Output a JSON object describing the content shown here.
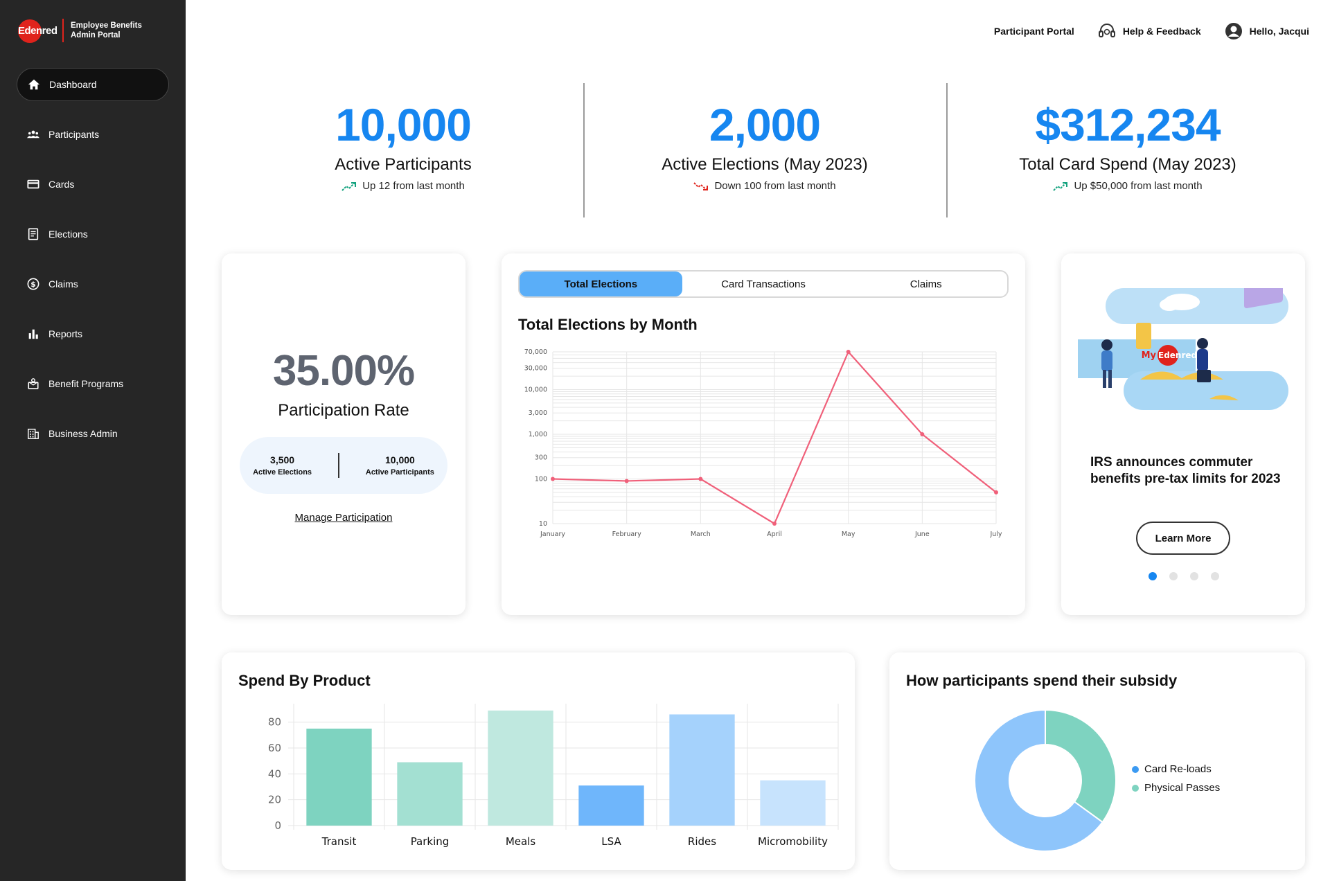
{
  "brand": {
    "logo_text": "Edenred",
    "title_line1": "Employee Benefits",
    "title_line2": "Admin Portal"
  },
  "sidebar": {
    "items": [
      {
        "label": "Dashboard",
        "icon": "home-icon"
      },
      {
        "label": "Participants",
        "icon": "people-icon"
      },
      {
        "label": "Cards",
        "icon": "card-icon"
      },
      {
        "label": "Elections",
        "icon": "elections-icon"
      },
      {
        "label": "Claims",
        "icon": "dollar-icon"
      },
      {
        "label": "Reports",
        "icon": "bar-chart-icon"
      },
      {
        "label": "Benefit Programs",
        "icon": "gift-icon"
      },
      {
        "label": "Business Admin",
        "icon": "building-icon"
      }
    ]
  },
  "topbar": {
    "participant_portal": "Participant Portal",
    "help": "Help & Feedback",
    "greeting": "Hello, Jacqui"
  },
  "kpis": [
    {
      "value": "10,000",
      "label": "Active Participants",
      "trend": "Up 12 from last month",
      "direction": "up"
    },
    {
      "value": "2,000",
      "label": "Active Elections (May 2023)",
      "trend": "Down 100 from last month",
      "direction": "down"
    },
    {
      "value": "$312,234",
      "label": "Total Card Spend (May 2023)",
      "trend": "Up $50,000 from last month",
      "direction": "up"
    }
  ],
  "participation": {
    "rate": "35.00%",
    "label": "Participation Rate",
    "elections_value": "3,500",
    "elections_label": "Active Elections",
    "participants_value": "10,000",
    "participants_label": "Active Participants",
    "link": "Manage Participation"
  },
  "chart_tabs": [
    "Total Elections",
    "Card Transactions",
    "Claims"
  ],
  "news": {
    "title": "IRS announces commuter benefits pre-tax limits for 2023",
    "button": "Learn More",
    "art_brand": "My",
    "art_brand_tail": "Edenred",
    "slides": 4,
    "active_slide": 0
  },
  "colors": {
    "accent": "#1686f0",
    "sidebar": "#262626",
    "line": "#f0607a",
    "green": "#7ed3c0",
    "blue": "#8ec5fb"
  },
  "chart_data": [
    {
      "type": "line",
      "title": "Total Elections by Month",
      "categories": [
        "January",
        "February",
        "March",
        "April",
        "May",
        "June",
        "July"
      ],
      "values": [
        100,
        90,
        100,
        10,
        70000,
        1000,
        50
      ],
      "yscale": "log",
      "yticks": [
        10,
        100,
        300,
        1000,
        3000,
        10000,
        30000,
        70000
      ],
      "ytick_labels": [
        "10",
        "100",
        "300",
        "1,000",
        "3,000",
        "10,000",
        "30,000",
        "70,000"
      ],
      "ylim": [
        10,
        70000
      ]
    },
    {
      "type": "bar",
      "title": "Spend By Product",
      "categories": [
        "Transit",
        "Parking",
        "Meals",
        "LSA",
        "Rides",
        "Micromobility"
      ],
      "values": [
        75,
        49,
        89,
        31,
        86,
        35
      ],
      "colors": [
        "#7ed3c0",
        "#a3e0d2",
        "#bfe8df",
        "#6fb6fb",
        "#a5d2fc",
        "#c7e3fd"
      ],
      "yticks": [
        0,
        20,
        40,
        60,
        80
      ],
      "ylim": [
        0,
        90
      ]
    },
    {
      "type": "pie",
      "title": "How participants spend their subsidy",
      "labels": [
        "Card Re-loads",
        "Physical Passes"
      ],
      "values": [
        65,
        35
      ],
      "colors": [
        "#8ec5fb",
        "#7ed3c0"
      ],
      "legend_dot_colors": [
        "#3b9af2",
        "#7ed3c0"
      ]
    }
  ]
}
